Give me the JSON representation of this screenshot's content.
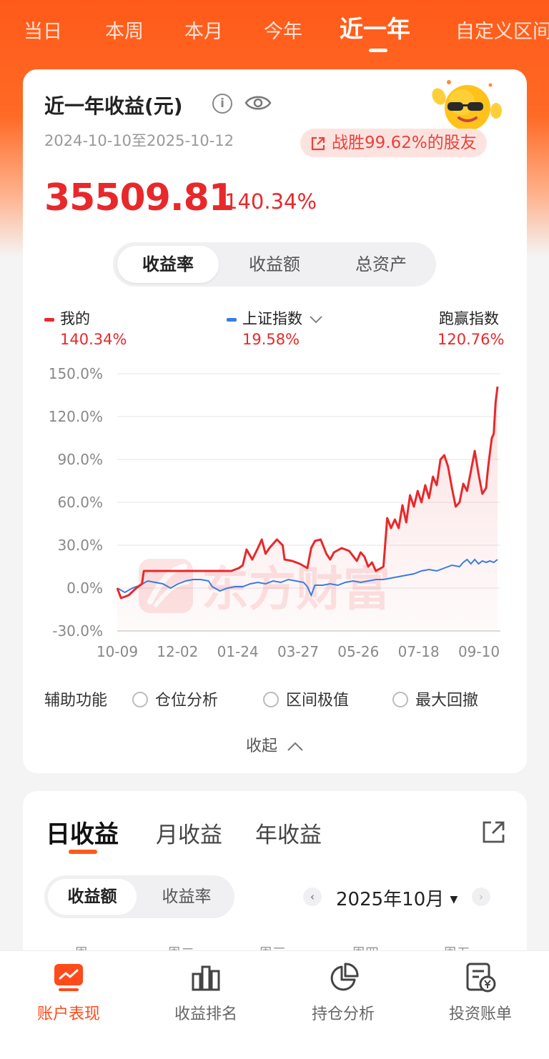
{
  "period_tabs": [
    {
      "label": "当日",
      "active": false
    },
    {
      "label": "本周",
      "active": false
    },
    {
      "label": "本月",
      "active": false
    },
    {
      "label": "今年",
      "active": false
    },
    {
      "label": "近一年",
      "active": true
    },
    {
      "label": "自定义区间",
      "active": false
    }
  ],
  "summary": {
    "title": "近一年收益(元)",
    "date_range": "2024-10-10至2025-10-12",
    "beat_text": "战胜99.62%的股友",
    "total_amount": "35509.81",
    "total_rate": "140.34%"
  },
  "metric_tabs": [
    {
      "label": "收益率",
      "active": true
    },
    {
      "label": "收益额",
      "active": false
    },
    {
      "label": "总资产",
      "active": false
    }
  ],
  "legend": {
    "mine": {
      "name": "我的",
      "value": "140.34%",
      "color": "#e8282b"
    },
    "index": {
      "name": "上证指数",
      "value": "19.58%",
      "color": "#3a7be6"
    },
    "excess": {
      "name": "跑赢指数",
      "value": "120.76%"
    }
  },
  "watermark": "东方财富",
  "chart_data": {
    "type": "line",
    "x_ticks": [
      "10-09",
      "12-02",
      "01-24",
      "03-27",
      "05-26",
      "07-18",
      "09-10"
    ],
    "y_ticks": [
      "150.0%",
      "120.0%",
      "90.0%",
      "60.0%",
      "30.0%",
      "0.0%",
      "-30.0%"
    ],
    "ylim": [
      -30,
      150
    ],
    "xlim": [
      0,
      1
    ],
    "series": [
      {
        "name": "我的",
        "color": "#e8282b",
        "points": [
          [
            0.0,
            0
          ],
          [
            0.01,
            -7
          ],
          [
            0.03,
            -5
          ],
          [
            0.05,
            0
          ],
          [
            0.065,
            3
          ],
          [
            0.07,
            12
          ],
          [
            0.1,
            12
          ],
          [
            0.2,
            12
          ],
          [
            0.3,
            12
          ],
          [
            0.32,
            14
          ],
          [
            0.33,
            16
          ],
          [
            0.34,
            27
          ],
          [
            0.355,
            20
          ],
          [
            0.37,
            28
          ],
          [
            0.38,
            34
          ],
          [
            0.39,
            24
          ],
          [
            0.4,
            28
          ],
          [
            0.41,
            31
          ],
          [
            0.42,
            34
          ],
          [
            0.435,
            30
          ],
          [
            0.44,
            20
          ],
          [
            0.46,
            19
          ],
          [
            0.48,
            17
          ],
          [
            0.5,
            14
          ],
          [
            0.51,
            28
          ],
          [
            0.52,
            33
          ],
          [
            0.535,
            34
          ],
          [
            0.55,
            24
          ],
          [
            0.56,
            20
          ],
          [
            0.57,
            25
          ],
          [
            0.59,
            28
          ],
          [
            0.61,
            26
          ],
          [
            0.63,
            19
          ],
          [
            0.64,
            25
          ],
          [
            0.65,
            22
          ],
          [
            0.66,
            15
          ],
          [
            0.67,
            18
          ],
          [
            0.68,
            12
          ],
          [
            0.7,
            15
          ],
          [
            0.71,
            49
          ],
          [
            0.72,
            42
          ],
          [
            0.73,
            48
          ],
          [
            0.74,
            42
          ],
          [
            0.75,
            58
          ],
          [
            0.76,
            46
          ],
          [
            0.77,
            65
          ],
          [
            0.78,
            57
          ],
          [
            0.79,
            68
          ],
          [
            0.8,
            60
          ],
          [
            0.81,
            72
          ],
          [
            0.82,
            63
          ],
          [
            0.83,
            78
          ],
          [
            0.84,
            72
          ],
          [
            0.85,
            90
          ],
          [
            0.86,
            93
          ],
          [
            0.87,
            85
          ],
          [
            0.88,
            70
          ],
          [
            0.89,
            57
          ],
          [
            0.9,
            60
          ],
          [
            0.91,
            73
          ],
          [
            0.92,
            68
          ],
          [
            0.93,
            82
          ],
          [
            0.94,
            96
          ],
          [
            0.95,
            80
          ],
          [
            0.96,
            66
          ],
          [
            0.97,
            70
          ],
          [
            0.975,
            84
          ],
          [
            0.98,
            95
          ],
          [
            0.985,
            105
          ],
          [
            0.99,
            108
          ],
          [
            0.995,
            130
          ],
          [
            1.0,
            141
          ]
        ]
      },
      {
        "name": "上证指数",
        "color": "#3a7be6",
        "points": [
          [
            0.0,
            0
          ],
          [
            0.02,
            -3
          ],
          [
            0.04,
            0
          ],
          [
            0.06,
            2
          ],
          [
            0.08,
            5
          ],
          [
            0.1,
            4
          ],
          [
            0.12,
            3
          ],
          [
            0.14,
            0
          ],
          [
            0.16,
            3
          ],
          [
            0.18,
            5
          ],
          [
            0.2,
            6
          ],
          [
            0.22,
            6
          ],
          [
            0.24,
            5
          ],
          [
            0.25,
            1
          ],
          [
            0.27,
            -2
          ],
          [
            0.29,
            0
          ],
          [
            0.31,
            1
          ],
          [
            0.33,
            1
          ],
          [
            0.35,
            3
          ],
          [
            0.37,
            4
          ],
          [
            0.39,
            3
          ],
          [
            0.41,
            5
          ],
          [
            0.43,
            4
          ],
          [
            0.45,
            6
          ],
          [
            0.47,
            5
          ],
          [
            0.49,
            4
          ],
          [
            0.5,
            1
          ],
          [
            0.51,
            -5
          ],
          [
            0.52,
            2
          ],
          [
            0.54,
            2
          ],
          [
            0.56,
            3
          ],
          [
            0.58,
            2
          ],
          [
            0.6,
            4
          ],
          [
            0.62,
            5
          ],
          [
            0.64,
            4
          ],
          [
            0.66,
            5
          ],
          [
            0.68,
            6
          ],
          [
            0.7,
            6
          ],
          [
            0.72,
            7
          ],
          [
            0.74,
            8
          ],
          [
            0.76,
            9
          ],
          [
            0.78,
            10
          ],
          [
            0.8,
            12
          ],
          [
            0.82,
            13
          ],
          [
            0.84,
            12
          ],
          [
            0.86,
            14
          ],
          [
            0.88,
            16
          ],
          [
            0.9,
            15
          ],
          [
            0.91,
            18
          ],
          [
            0.92,
            20
          ],
          [
            0.93,
            17
          ],
          [
            0.94,
            20
          ],
          [
            0.95,
            17
          ],
          [
            0.96,
            19
          ],
          [
            0.97,
            18
          ],
          [
            0.98,
            19
          ],
          [
            0.99,
            18
          ],
          [
            1.0,
            20
          ]
        ]
      }
    ]
  },
  "aux": {
    "label": "辅助功能",
    "options": [
      "仓位分析",
      "区间极值",
      "最大回撤"
    ],
    "collapse": "收起"
  },
  "daily": {
    "tabs": [
      {
        "label": "日收益",
        "active": true
      },
      {
        "label": "月收益",
        "active": false
      },
      {
        "label": "年收益",
        "active": false
      }
    ],
    "metric_tabs": [
      {
        "label": "收益额",
        "active": true
      },
      {
        "label": "收益率",
        "active": false
      }
    ],
    "month": "2025年10月",
    "weekdays": [
      "周一",
      "周二",
      "周三",
      "周四",
      "周五"
    ]
  },
  "bottom_nav": [
    {
      "label": "账户表现",
      "icon": "trend-monitor-icon",
      "active": true
    },
    {
      "label": "收益排名",
      "icon": "bar-ranking-icon",
      "active": false
    },
    {
      "label": "持仓分析",
      "icon": "pie-chart-icon",
      "active": false
    },
    {
      "label": "投资账单",
      "icon": "bill-yen-icon",
      "active": false
    }
  ]
}
